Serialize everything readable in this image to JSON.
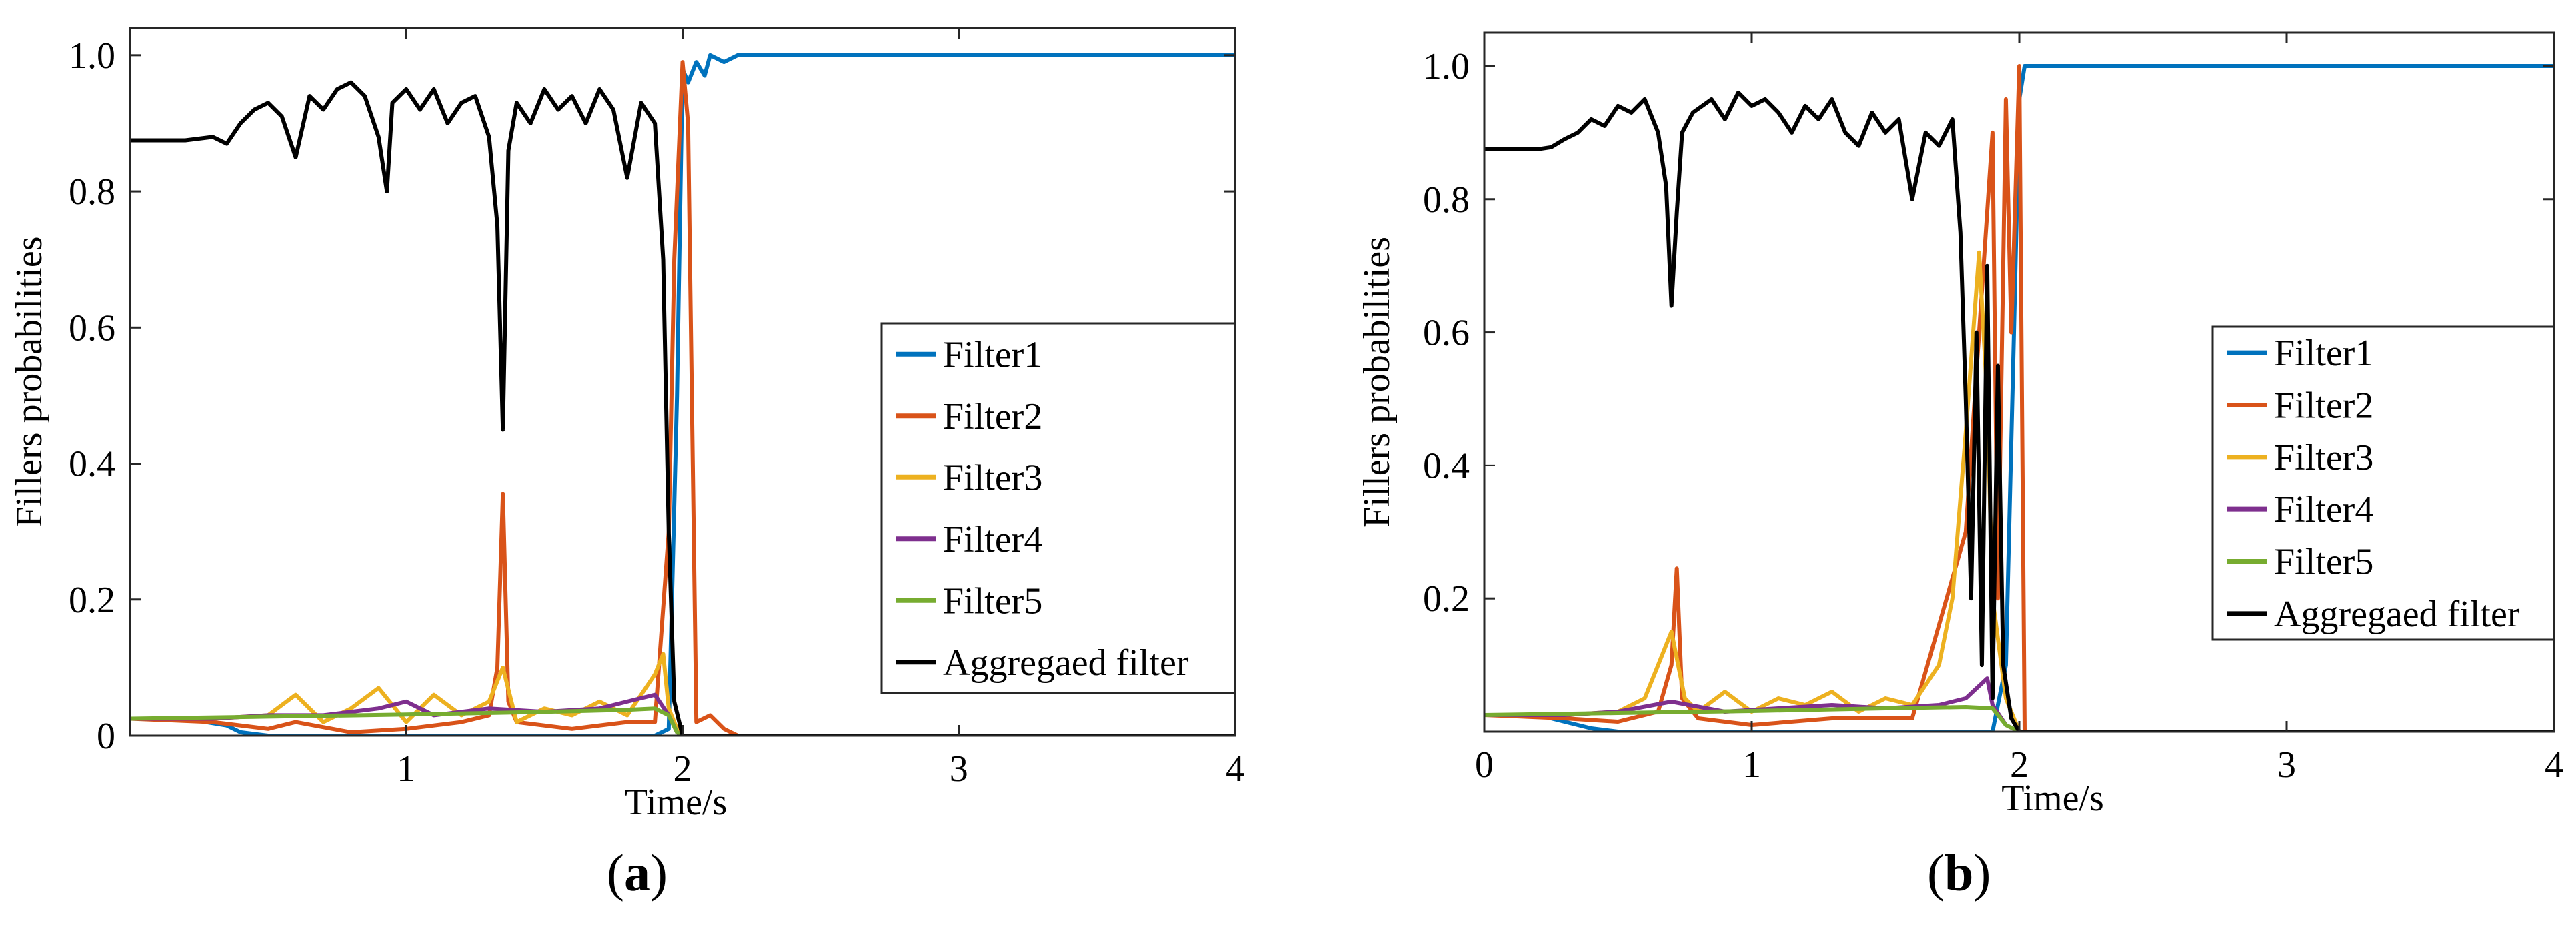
{
  "chart_data": [
    {
      "type": "line",
      "panel_label": "a",
      "xlabel": "Time/s",
      "ylabel": "Fillers probabilities",
      "xlim": [
        0,
        4
      ],
      "ylim": [
        0,
        1.04
      ],
      "xticks": [
        1,
        2,
        3,
        4
      ],
      "xtick_labels": [
        "1",
        "2",
        "3",
        "4"
      ],
      "yticks": [
        0,
        0.2,
        0.4,
        0.6,
        0.8,
        1.0
      ],
      "ytick_labels": [
        "0",
        "0.2",
        "0.4",
        "0.6",
        "0.8",
        "1.0"
      ],
      "legend_position": "center-right",
      "grid": false,
      "series": [
        {
          "name": "Filter1",
          "color": "#0072BD",
          "x": [
            0,
            0.2,
            0.35,
            0.4,
            0.5,
            0.8,
            1.2,
            1.5,
            1.8,
            1.9,
            1.95,
            1.98,
            2.0,
            2.02,
            2.05,
            2.08,
            2.1,
            2.15,
            2.2,
            3,
            4
          ],
          "y": [
            0.025,
            0.025,
            0.015,
            0.005,
            0,
            0,
            0,
            0,
            0,
            0,
            0.01,
            0.5,
            0.98,
            0.96,
            0.99,
            0.97,
            1.0,
            0.99,
            1.0,
            1.0,
            1.0
          ]
        },
        {
          "name": "Filter2",
          "color": "#D95319",
          "x": [
            0,
            0.3,
            0.5,
            0.6,
            0.8,
            1.0,
            1.2,
            1.3,
            1.33,
            1.35,
            1.37,
            1.4,
            1.6,
            1.8,
            1.9,
            1.95,
            1.97,
            2.0,
            2.02,
            2.05,
            2.1,
            2.15,
            2.2,
            4
          ],
          "y": [
            0.025,
            0.02,
            0.01,
            0.02,
            0.005,
            0.01,
            0.02,
            0.03,
            0.1,
            0.355,
            0.05,
            0.02,
            0.01,
            0.02,
            0.02,
            0.3,
            0.7,
            0.99,
            0.9,
            0.02,
            0.03,
            0.01,
            0,
            0
          ]
        },
        {
          "name": "Filter3",
          "color": "#EDB120",
          "x": [
            0,
            0.3,
            0.5,
            0.6,
            0.7,
            0.8,
            0.9,
            1.0,
            1.1,
            1.2,
            1.3,
            1.35,
            1.4,
            1.5,
            1.6,
            1.7,
            1.8,
            1.85,
            1.9,
            1.93,
            1.95,
            1.98,
            2.0,
            4
          ],
          "y": [
            0.025,
            0.025,
            0.03,
            0.06,
            0.02,
            0.04,
            0.07,
            0.02,
            0.06,
            0.03,
            0.05,
            0.1,
            0.02,
            0.04,
            0.03,
            0.05,
            0.03,
            0.06,
            0.09,
            0.12,
            0.04,
            0.01,
            0,
            0
          ]
        },
        {
          "name": "Filter4",
          "color": "#7E2F8E",
          "x": [
            0,
            0.3,
            0.5,
            0.7,
            0.9,
            1.0,
            1.1,
            1.3,
            1.5,
            1.7,
            1.8,
            1.9,
            1.95,
            1.98,
            2.0,
            4
          ],
          "y": [
            0.025,
            0.025,
            0.03,
            0.03,
            0.04,
            0.05,
            0.03,
            0.04,
            0.035,
            0.04,
            0.05,
            0.06,
            0.03,
            0.005,
            0,
            0
          ]
        },
        {
          "name": "Filter5",
          "color": "#77AC30",
          "x": [
            0,
            0.5,
            1.0,
            1.5,
            1.8,
            1.9,
            1.95,
            1.98,
            2.0,
            4
          ],
          "y": [
            0.025,
            0.028,
            0.031,
            0.035,
            0.038,
            0.04,
            0.03,
            0.005,
            0,
            0
          ]
        },
        {
          "name": "Aggregaed filter",
          "color": "#000000",
          "x": [
            0,
            0.2,
            0.3,
            0.35,
            0.4,
            0.45,
            0.5,
            0.55,
            0.6,
            0.65,
            0.7,
            0.75,
            0.8,
            0.85,
            0.9,
            0.93,
            0.95,
            1.0,
            1.05,
            1.1,
            1.15,
            1.2,
            1.25,
            1.3,
            1.33,
            1.35,
            1.37,
            1.4,
            1.45,
            1.5,
            1.55,
            1.6,
            1.65,
            1.7,
            1.75,
            1.8,
            1.85,
            1.9,
            1.93,
            1.95,
            1.97,
            2.0,
            4
          ],
          "y": [
            0.875,
            0.875,
            0.88,
            0.87,
            0.9,
            0.92,
            0.93,
            0.91,
            0.85,
            0.94,
            0.92,
            0.95,
            0.96,
            0.94,
            0.88,
            0.8,
            0.93,
            0.95,
            0.92,
            0.95,
            0.9,
            0.93,
            0.94,
            0.88,
            0.75,
            0.45,
            0.86,
            0.93,
            0.9,
            0.95,
            0.92,
            0.94,
            0.9,
            0.95,
            0.92,
            0.82,
            0.93,
            0.9,
            0.7,
            0.3,
            0.05,
            0,
            0
          ]
        }
      ]
    },
    {
      "type": "line",
      "panel_label": "b",
      "xlabel": "Time/s",
      "ylabel": "Fillers probabilities",
      "xlim": [
        0,
        4
      ],
      "ylim": [
        0,
        1.05
      ],
      "xticks": [
        0,
        1,
        2,
        3,
        4
      ],
      "xtick_labels": [
        "0",
        "1",
        "2",
        "3",
        "4"
      ],
      "yticks": [
        0.2,
        0.4,
        0.6,
        0.8,
        1.0
      ],
      "ytick_labels": [
        "0.2",
        "0.4",
        "0.6",
        "0.8",
        "1.0"
      ],
      "legend_position": "right",
      "grid": false,
      "series": [
        {
          "name": "Filter1",
          "color": "#0072BD",
          "x": [
            0,
            0.2,
            0.3,
            0.4,
            0.5,
            1.0,
            1.5,
            1.8,
            1.9,
            1.95,
            1.98,
            2.0,
            2.02,
            4
          ],
          "y": [
            0.025,
            0.025,
            0.015,
            0.005,
            0,
            0,
            0,
            0,
            0,
            0.1,
            0.6,
            0.95,
            1.0,
            1.0
          ]
        },
        {
          "name": "Filter2",
          "color": "#D95319",
          "x": [
            0,
            0.3,
            0.5,
            0.65,
            0.7,
            0.72,
            0.74,
            0.8,
            1.0,
            1.3,
            1.6,
            1.8,
            1.85,
            1.9,
            1.92,
            1.95,
            1.97,
            2.0,
            2.02,
            4
          ],
          "y": [
            0.025,
            0.02,
            0.015,
            0.03,
            0.1,
            0.245,
            0.05,
            0.02,
            0.01,
            0.02,
            0.02,
            0.3,
            0.6,
            0.9,
            0.2,
            0.95,
            0.6,
            1.0,
            0,
            0
          ]
        },
        {
          "name": "Filter3",
          "color": "#EDB120",
          "x": [
            0,
            0.3,
            0.5,
            0.6,
            0.65,
            0.7,
            0.75,
            0.8,
            0.9,
            1.0,
            1.1,
            1.2,
            1.3,
            1.4,
            1.5,
            1.6,
            1.7,
            1.75,
            1.8,
            1.85,
            1.88,
            1.9,
            1.95,
            2.0,
            4
          ],
          "y": [
            0.025,
            0.025,
            0.03,
            0.05,
            0.1,
            0.15,
            0.05,
            0.03,
            0.06,
            0.03,
            0.05,
            0.04,
            0.06,
            0.03,
            0.05,
            0.04,
            0.1,
            0.2,
            0.45,
            0.72,
            0.5,
            0.2,
            0.05,
            0,
            0
          ]
        },
        {
          "name": "Filter4",
          "color": "#7E2F8E",
          "x": [
            0,
            0.3,
            0.5,
            0.7,
            0.9,
            1.1,
            1.3,
            1.5,
            1.7,
            1.8,
            1.88,
            1.9,
            1.95,
            2.0,
            4
          ],
          "y": [
            0.025,
            0.025,
            0.03,
            0.045,
            0.03,
            0.035,
            0.04,
            0.035,
            0.04,
            0.05,
            0.08,
            0.04,
            0.01,
            0,
            0
          ]
        },
        {
          "name": "Filter5",
          "color": "#77AC30",
          "x": [
            0,
            0.5,
            1.0,
            1.5,
            1.8,
            1.9,
            1.95,
            2.0,
            4
          ],
          "y": [
            0.025,
            0.028,
            0.031,
            0.035,
            0.037,
            0.035,
            0.01,
            0,
            0
          ]
        },
        {
          "name": "Aggregaed filter",
          "color": "#000000",
          "x": [
            0,
            0.2,
            0.25,
            0.3,
            0.35,
            0.4,
            0.45,
            0.5,
            0.55,
            0.6,
            0.65,
            0.68,
            0.7,
            0.72,
            0.74,
            0.78,
            0.85,
            0.9,
            0.95,
            1.0,
            1.05,
            1.1,
            1.15,
            1.2,
            1.25,
            1.3,
            1.35,
            1.4,
            1.45,
            1.5,
            1.55,
            1.6,
            1.65,
            1.7,
            1.75,
            1.78,
            1.8,
            1.82,
            1.84,
            1.86,
            1.88,
            1.9,
            1.92,
            1.94,
            1.97,
            2.0,
            4
          ],
          "y": [
            0.875,
            0.875,
            0.878,
            0.89,
            0.9,
            0.92,
            0.91,
            0.94,
            0.93,
            0.95,
            0.9,
            0.82,
            0.64,
            0.78,
            0.9,
            0.93,
            0.95,
            0.92,
            0.96,
            0.94,
            0.95,
            0.93,
            0.9,
            0.94,
            0.92,
            0.95,
            0.9,
            0.88,
            0.93,
            0.9,
            0.92,
            0.8,
            0.9,
            0.88,
            0.92,
            0.75,
            0.5,
            0.2,
            0.6,
            0.1,
            0.7,
            0.05,
            0.55,
            0.1,
            0.02,
            0,
            0
          ]
        }
      ]
    }
  ]
}
